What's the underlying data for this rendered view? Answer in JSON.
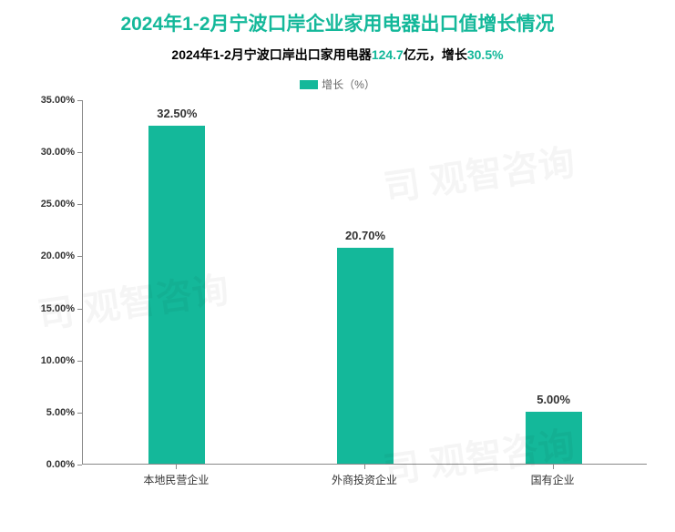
{
  "title": {
    "text": "2024年1-2月宁波口岸企业家用电器出口值增长情况",
    "color": "#14b89a",
    "fontsize": 21
  },
  "subtitle": {
    "prefix": "2024年1-2月宁波口岸出口家用电器",
    "value1": "124.7",
    "mid": "亿元，增长",
    "value2": "30.5%",
    "color_text": "#000000",
    "color_highlight": "#14b89a",
    "fontsize": 14
  },
  "legend": {
    "label": "增长（%）",
    "swatch_color": "#14b89a",
    "text_color": "#666666"
  },
  "chart": {
    "type": "bar",
    "categories": [
      "本地民营企业",
      "外商投资企业",
      "国有企业"
    ],
    "values": [
      32.5,
      20.7,
      5.0
    ],
    "value_labels": [
      "32.50%",
      "20.70%",
      "5.00%"
    ],
    "bar_color": "#14b89a",
    "ylim": [
      0,
      35
    ],
    "ytick_step": 5,
    "ytick_labels": [
      "0.00%",
      "5.00%",
      "10.00%",
      "15.00%",
      "20.00%",
      "25.00%",
      "30.00%",
      "35.00%"
    ],
    "bar_width_ratio": 0.3,
    "background_color": "#ffffff",
    "axis_color": "#888888",
    "label_fontsize": 12,
    "value_label_fontsize": 13
  },
  "watermark": {
    "text": "司 观智咨询",
    "color": "rgba(0,0,0,0.04)"
  }
}
